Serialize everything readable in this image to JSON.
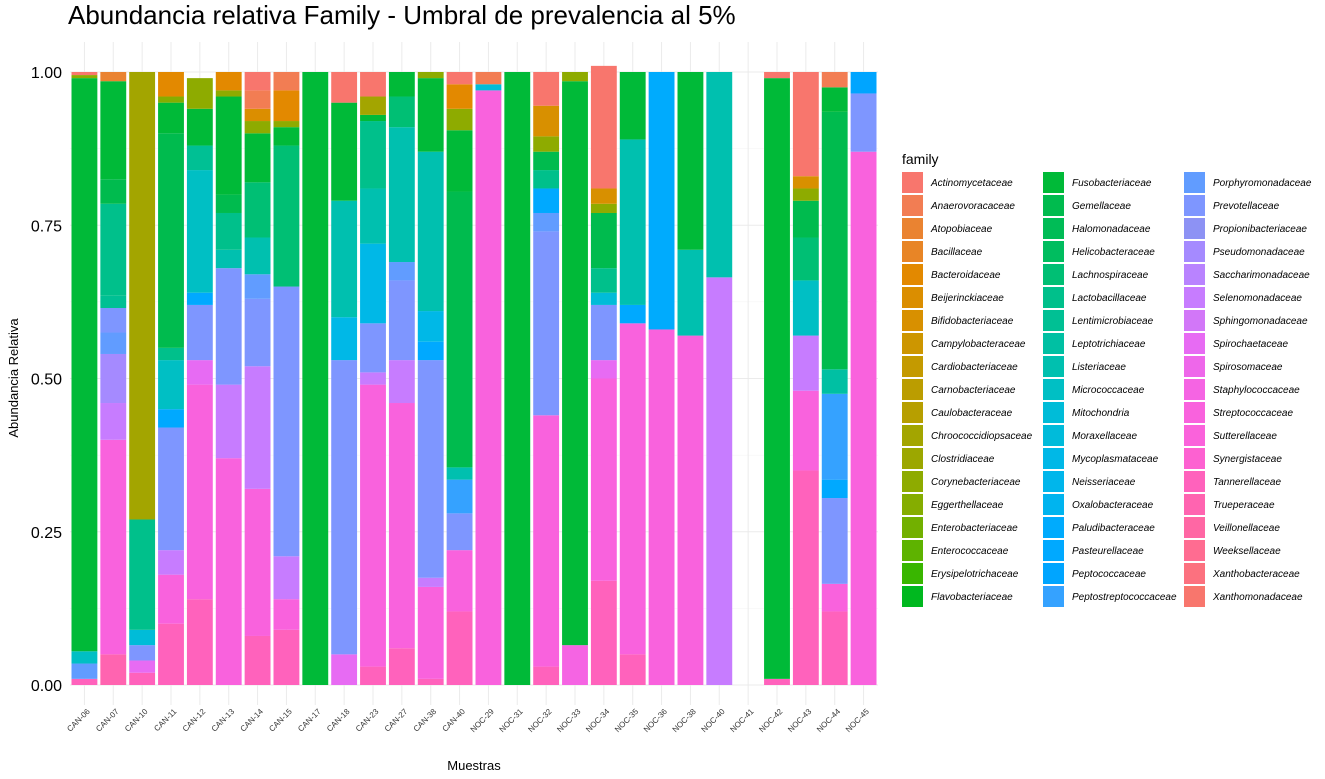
{
  "chart_data": {
    "type": "bar",
    "stacked": true,
    "title": "Abundancia relativa Family - Umbral de prevalencia al 5%",
    "xlabel": "Muestras",
    "ylabel": "Abundancia Relativa",
    "ylim": [
      0,
      1
    ],
    "y_ticks": [
      "0.00",
      "0.25",
      "0.50",
      "0.75",
      "1.00"
    ],
    "y_tick_values": [
      0,
      0.25,
      0.5,
      0.75,
      1
    ],
    "grid": true,
    "legend_title": "family",
    "legend_position": "right",
    "categories": [
      "CAN-06",
      "CAN-07",
      "CAN-10",
      "CAN-11",
      "CAN-12",
      "CAN-13",
      "CAN-14",
      "CAN-15",
      "CAN-17",
      "CAN-18",
      "CAN-23",
      "CAN-27",
      "CAN-38",
      "CAN-40",
      "NOC-29",
      "NOC-31",
      "NOC-32",
      "NOC-33",
      "NOC-34",
      "NOC-35",
      "NOC-36",
      "NOC-38",
      "NOC-40",
      "NOC-41",
      "NOC-42",
      "NOC-43",
      "NOC-44",
      "NOC-45"
    ],
    "families": [
      {
        "name": "Actinomycetaceae",
        "color": "#F8766D"
      },
      {
        "name": "Anaerovoracaceae",
        "color": "#F27D53"
      },
      {
        "name": "Atopobiaceae",
        "color": "#EA8331"
      },
      {
        "name": "Bacillaceae",
        "color": "#E88526"
      },
      {
        "name": "Bacteroidaceae",
        "color": "#E38900"
      },
      {
        "name": "Beijerinckiaceae",
        "color": "#DB8E00"
      },
      {
        "name": "Bifidobacteriaceae",
        "color": "#D89000"
      },
      {
        "name": "Campylobacteraceae",
        "color": "#CD9600"
      },
      {
        "name": "Cardiobacteriaceae",
        "color": "#C49A00"
      },
      {
        "name": "Carnobacteriaceae",
        "color": "#BB9D00"
      },
      {
        "name": "Caulobacteraceae",
        "color": "#B79F00"
      },
      {
        "name": "Chroococcidiopsaceae",
        "color": "#A3A500"
      },
      {
        "name": "Clostridiaceae",
        "color": "#9CA700"
      },
      {
        "name": "Corynebacteriaceae",
        "color": "#8EAB00"
      },
      {
        "name": "Eggerthellaceae",
        "color": "#85AD00"
      },
      {
        "name": "Enterobacteriaceae",
        "color": "#72B000"
      },
      {
        "name": "Enterococcaceae",
        "color": "#5EB300"
      },
      {
        "name": "Erysipelotrichaceae",
        "color": "#39B600"
      },
      {
        "name": "Flavobacteriaceae",
        "color": "#00B81F"
      },
      {
        "name": "Fusobacteriaceae",
        "color": "#00BA38"
      },
      {
        "name": "Gemellaceae",
        "color": "#00BB4E"
      },
      {
        "name": "Halomonadaceae",
        "color": "#00BC56"
      },
      {
        "name": "Helicobacteraceae",
        "color": "#00BD5F"
      },
      {
        "name": "Lachnospiraceae",
        "color": "#00BF74"
      },
      {
        "name": "Lactobacillaceae",
        "color": "#00C08B"
      },
      {
        "name": "Lentimicrobiaceae",
        "color": "#00C094"
      },
      {
        "name": "Leptotrichiaceae",
        "color": "#00C0A3"
      },
      {
        "name": "Listeriaceae",
        "color": "#00C0AF"
      },
      {
        "name": "Micrococcaceae",
        "color": "#00BFC4"
      },
      {
        "name": "Mitochondria",
        "color": "#00BCD8"
      },
      {
        "name": "Moraxellaceae",
        "color": "#00BBDA"
      },
      {
        "name": "Mycoplasmataceae",
        "color": "#00B8E7"
      },
      {
        "name": "Neisseriaceae",
        "color": "#00B6EB"
      },
      {
        "name": "Oxalobacteraceae",
        "color": "#00B4EF"
      },
      {
        "name": "Paludibacteraceae",
        "color": "#00ABFD"
      },
      {
        "name": "Pasteurellaceae",
        "color": "#00A9FF"
      },
      {
        "name": "Peptococcaceae",
        "color": "#00A5FF"
      },
      {
        "name": "Peptostreptococcaceae",
        "color": "#35A2FF"
      },
      {
        "name": "Porphyromonadaceae",
        "color": "#619CFF"
      },
      {
        "name": "Prevotellaceae",
        "color": "#7E96FF"
      },
      {
        "name": "Propionibacteriaceae",
        "color": "#8D92F4"
      },
      {
        "name": "Pseudomonadaceae",
        "color": "#A58AFF"
      },
      {
        "name": "Saccharimonadaceae",
        "color": "#B983FF"
      },
      {
        "name": "Selenomonadaceae",
        "color": "#C77CFF"
      },
      {
        "name": "Sphingomonadaceae",
        "color": "#D277F8"
      },
      {
        "name": "Spirochaetaceae",
        "color": "#E76BF3"
      },
      {
        "name": "Spirosomaceae",
        "color": "#EE67EA"
      },
      {
        "name": "Staphylococcaceae",
        "color": "#F564E3"
      },
      {
        "name": "Streptococcaceae",
        "color": "#F962DD"
      },
      {
        "name": "Sutterellaceae",
        "color": "#FA62DB"
      },
      {
        "name": "Synergistaceae",
        "color": "#FD61D1"
      },
      {
        "name": "Tannerellaceae",
        "color": "#FF62BC"
      },
      {
        "name": "Trueperaceae",
        "color": "#FF64B0"
      },
      {
        "name": "Veillonellaceae",
        "color": "#FF67A4"
      },
      {
        "name": "Weeksellaceae",
        "color": "#FF6C91"
      },
      {
        "name": "Xanthobacteraceae",
        "color": "#FC717F"
      },
      {
        "name": "Xanthomonadaceae",
        "color": "#F8766D"
      }
    ],
    "stacks": [
      [
        [
          "Tannerellaceae",
          0.01
        ],
        [
          "Porphyromonadaceae",
          0.025
        ],
        [
          "Micrococcaceae",
          0.02
        ],
        [
          "Fusobacteriaceae",
          0.935
        ],
        [
          "Corynebacteriaceae",
          0.005
        ],
        [
          "Actinomycetaceae",
          0.005
        ]
      ],
      [
        [
          "Trueperaceae",
          0.05
        ],
        [
          "Streptococcaceae",
          0.35
        ],
        [
          "Selenomonadaceae",
          0.06
        ],
        [
          "Pseudomonadaceae",
          0.08
        ],
        [
          "Porphyromonadaceae",
          0.035
        ],
        [
          "Prevotellaceae",
          0.04
        ],
        [
          "Lentimicrobiaceae",
          0.02
        ],
        [
          "Lactobacillaceae",
          0.15
        ],
        [
          "Gemellaceae",
          0.04
        ],
        [
          "Fusobacteriaceae",
          0.16
        ],
        [
          "Atopobiaceae",
          0.015
        ]
      ],
      [
        [
          "Tannerellaceae",
          0.02
        ],
        [
          "Spirochaetaceae",
          0.02
        ],
        [
          "Prevotellaceae",
          0.025
        ],
        [
          "Mitochondria",
          0.025
        ],
        [
          "Lactobacillaceae",
          0.18
        ],
        [
          "Chroococcidiopsaceae",
          0.73
        ]
      ],
      [
        [
          "Tannerellaceae",
          0.1
        ],
        [
          "Streptococcaceae",
          0.08
        ],
        [
          "Selenomonadaceae",
          0.04
        ],
        [
          "Prevotellaceae",
          0.2
        ],
        [
          "Pasteurellaceae",
          0.03
        ],
        [
          "Micrococcaceae",
          0.08
        ],
        [
          "Lactobacillaceae",
          0.02
        ],
        [
          "Gemellaceae",
          0.35
        ],
        [
          "Fusobacteriaceae",
          0.05
        ],
        [
          "Eggerthellaceae",
          0.01
        ],
        [
          "Bacteroidaceae",
          0.04
        ]
      ],
      [
        [
          "Tannerellaceae",
          0.14
        ],
        [
          "Streptococcaceae",
          0.35
        ],
        [
          "Spirochaetaceae",
          0.04
        ],
        [
          "Prevotellaceae",
          0.09
        ],
        [
          "Pasteurellaceae",
          0.02
        ],
        [
          "Micrococcaceae",
          0.2
        ],
        [
          "Lentimicrobiaceae",
          0.04
        ],
        [
          "Fusobacteriaceae",
          0.06
        ],
        [
          "Corynebacteriaceae",
          0.05
        ]
      ],
      [
        [
          "Streptococcaceae",
          0.37
        ],
        [
          "Selenomonadaceae",
          0.12
        ],
        [
          "Prevotellaceae",
          0.19
        ],
        [
          "Listeriaceae",
          0.03
        ],
        [
          "Lactobacillaceae",
          0.06
        ],
        [
          "Gemellaceae",
          0.03
        ],
        [
          "Fusobacteriaceae",
          0.16
        ],
        [
          "Corynebacteriaceae",
          0.01
        ],
        [
          "Bacteroidaceae",
          0.03
        ]
      ],
      [
        [
          "Tannerellaceae",
          0.08
        ],
        [
          "Streptococcaceae",
          0.24
        ],
        [
          "Selenomonadaceae",
          0.2
        ],
        [
          "Prevotellaceae",
          0.11
        ],
        [
          "Porphyromonadaceae",
          0.04
        ],
        [
          "Listeriaceae",
          0.06
        ],
        [
          "Lachnospiraceae",
          0.09
        ],
        [
          "Fusobacteriaceae",
          0.08
        ],
        [
          "Corynebacteriaceae",
          0.02
        ],
        [
          "Beijerinckiaceae",
          0.02
        ],
        [
          "Anaerovoracaceae",
          0.03
        ],
        [
          "Actinomycetaceae",
          0.03
        ]
      ],
      [
        [
          "Tannerellaceae",
          0.09
        ],
        [
          "Streptococcaceae",
          0.05
        ],
        [
          "Selenomonadaceae",
          0.07
        ],
        [
          "Prevotellaceae",
          0.44
        ],
        [
          "Lachnospiraceae",
          0.23
        ],
        [
          "Fusobacteriaceae",
          0.03
        ],
        [
          "Corynebacteriaceae",
          0.01
        ],
        [
          "Bacteroidaceae",
          0.05
        ],
        [
          "Anaerovoracaceae",
          0.03
        ]
      ],
      [
        [
          "Fusobacteriaceae",
          1.0
        ]
      ],
      [
        [
          "Spirochaetaceae",
          0.05
        ],
        [
          "Prevotellaceae",
          0.48
        ],
        [
          "Mycoplasmataceae",
          0.07
        ],
        [
          "Listeriaceae",
          0.19
        ],
        [
          "Fusobacteriaceae",
          0.16
        ],
        [
          "Actinomycetaceae",
          0.05
        ]
      ],
      [
        [
          "Tannerellaceae",
          0.03
        ],
        [
          "Streptococcaceae",
          0.46
        ],
        [
          "Selenomonadaceae",
          0.02
        ],
        [
          "Prevotellaceae",
          0.08
        ],
        [
          "Mycoplasmataceae",
          0.13
        ],
        [
          "Listeriaceae",
          0.09
        ],
        [
          "Lactobacillaceae",
          0.11
        ],
        [
          "Fusobacteriaceae",
          0.01
        ],
        [
          "Chroococcidiopsaceae",
          0.03
        ],
        [
          "Actinomycetaceae",
          0.04
        ]
      ],
      [
        [
          "Tannerellaceae",
          0.06
        ],
        [
          "Streptococcaceae",
          0.4
        ],
        [
          "Selenomonadaceae",
          0.07
        ],
        [
          "Prevotellaceae",
          0.13
        ],
        [
          "Porphyromonadaceae",
          0.03
        ],
        [
          "Listeriaceae",
          0.22
        ],
        [
          "Lachnospiraceae",
          0.05
        ],
        [
          "Fusobacteriaceae",
          0.04
        ]
      ],
      [
        [
          "Tannerellaceae",
          0.01
        ],
        [
          "Streptococcaceae",
          0.15
        ],
        [
          "Selenomonadaceae",
          0.015
        ],
        [
          "Prevotellaceae",
          0.355
        ],
        [
          "Pasteurellaceae",
          0.03
        ],
        [
          "Mycoplasmataceae",
          0.05
        ],
        [
          "Listeriaceae",
          0.26
        ],
        [
          "Fusobacteriaceae",
          0.12
        ],
        [
          "Corynebacteriaceae",
          0.01
        ]
      ],
      [
        [
          "Tannerellaceae",
          0.12
        ],
        [
          "Streptococcaceae",
          0.1
        ],
        [
          "Prevotellaceae",
          0.06
        ],
        [
          "Peptostreptococcaceae",
          0.055
        ],
        [
          "Listeriaceae",
          0.02
        ],
        [
          "Gemellaceae",
          0.45
        ],
        [
          "Fusobacteriaceae",
          0.1
        ],
        [
          "Corynebacteriaceae",
          0.035
        ],
        [
          "Bacteroidaceae",
          0.04
        ],
        [
          "Actinomycetaceae",
          0.02
        ]
      ],
      [
        [
          "Streptococcaceae",
          0.97
        ],
        [
          "Mitochondria",
          0.01
        ],
        [
          "Anaerovoracaceae",
          0.02
        ]
      ],
      [
        [
          "Fusobacteriaceae",
          1.0
        ]
      ],
      [
        [
          "Tannerellaceae",
          0.03
        ],
        [
          "Streptococcaceae",
          0.41
        ],
        [
          "Prevotellaceae",
          0.3
        ],
        [
          "Porphyromonadaceae",
          0.03
        ],
        [
          "Pasteurellaceae",
          0.04
        ],
        [
          "Lactobacillaceae",
          0.03
        ],
        [
          "Gemellaceae",
          0.03
        ],
        [
          "Corynebacteriaceae",
          0.025
        ],
        [
          "Bifidobacteriaceae",
          0.05
        ],
        [
          "Actinomycetaceae",
          0.055
        ]
      ],
      [
        [
          "Staphylococcaceae",
          0.065
        ],
        [
          "Fusobacteriaceae",
          0.92
        ],
        [
          "Corynebacteriaceae",
          0.015
        ]
      ],
      [
        [
          "Tannerellaceae",
          0.17
        ],
        [
          "Streptococcaceae",
          0.33
        ],
        [
          "Spirochaetaceae",
          0.03
        ],
        [
          "Prevotellaceae",
          0.09
        ],
        [
          "Mitochondria",
          0.02
        ],
        [
          "Lactobacillaceae",
          0.04
        ],
        [
          "Gemellaceae",
          0.09
        ],
        [
          "Corynebacteriaceae",
          0.015
        ],
        [
          "Bifidobacteriaceae",
          0.025
        ],
        [
          "Actinomycetaceae",
          0.2
        ]
      ],
      [
        [
          "Tannerellaceae",
          0.05
        ],
        [
          "Streptococcaceae",
          0.54
        ],
        [
          "Pasteurellaceae",
          0.03
        ],
        [
          "Listeriaceae",
          0.27
        ],
        [
          "Fusobacteriaceae",
          0.11
        ]
      ],
      [
        [
          "Streptococcaceae",
          0.58
        ],
        [
          "Paludibacteraceae",
          0.42
        ]
      ],
      [
        [
          "Streptococcaceae",
          0.57
        ],
        [
          "Listeriaceae",
          0.14
        ],
        [
          "Fusobacteriaceae",
          0.29
        ]
      ],
      [
        [
          "Selenomonadaceae",
          0.665
        ],
        [
          "Listeriaceae",
          0.335
        ]
      ],
      [],
      [
        [
          "Tannerellaceae",
          0.01
        ],
        [
          "Fusobacteriaceae",
          0.98
        ],
        [
          "Actinomycetaceae",
          0.01
        ]
      ],
      [
        [
          "Tannerellaceae",
          0.35
        ],
        [
          "Streptococcaceae",
          0.13
        ],
        [
          "Selenomonadaceae",
          0.09
        ],
        [
          "Micrococcaceae",
          0.09
        ],
        [
          "Lachnospiraceae",
          0.07
        ],
        [
          "Gemellaceae",
          0.06
        ],
        [
          "Corynebacteriaceae",
          0.02
        ],
        [
          "Bifidobacteriaceae",
          0.02
        ],
        [
          "Actinomycetaceae",
          0.17
        ]
      ],
      [
        [
          "Tannerellaceae",
          0.12
        ],
        [
          "Streptococcaceae",
          0.045
        ],
        [
          "Prevotellaceae",
          0.14
        ],
        [
          "Pasteurellaceae",
          0.03
        ],
        [
          "Peptostreptococcaceae",
          0.14
        ],
        [
          "Leptotrichiaceae",
          0.04
        ],
        [
          "Gemellaceae",
          0.42
        ],
        [
          "Fusobacteriaceae",
          0.04
        ],
        [
          "Anaerovoracaceae",
          0.025
        ]
      ],
      [
        [
          "Streptococcaceae",
          0.87
        ],
        [
          "Prevotellaceae",
          0.095
        ],
        [
          "Peptococcaceae",
          0.035
        ]
      ]
    ]
  }
}
